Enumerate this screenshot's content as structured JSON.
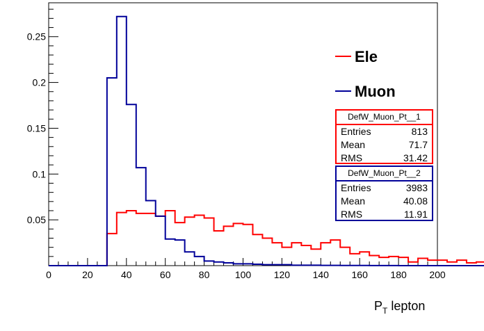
{
  "chart_data": {
    "type": "histogram",
    "title": "",
    "xlabel": "P_T lepton",
    "xlabel_main": "P",
    "xlabel_sub": "T",
    "xlabel_rest": " lepton",
    "ylabel": "",
    "xlim": [
      0,
      200
    ],
    "ylim": [
      0,
      0.287
    ],
    "bin_width": 5,
    "bin_start": 0,
    "x_ticks": [
      0,
      20,
      40,
      60,
      80,
      100,
      120,
      140,
      160,
      180,
      200
    ],
    "y_ticks": [
      0.05,
      0.1,
      0.15,
      0.2,
      0.25
    ],
    "y_tick_labels": [
      "0.05",
      "0.1",
      "0.15",
      "0.2",
      "0.25"
    ],
    "legend_position": "right",
    "series": [
      {
        "name": "Ele",
        "color": "#ff0000",
        "values": [
          0,
          0,
          0,
          0,
          0,
          0,
          0.035,
          0.058,
          0.06,
          0.057,
          0.057,
          0.054,
          0.06,
          0.047,
          0.053,
          0.055,
          0.052,
          0.038,
          0.043,
          0.046,
          0.045,
          0.034,
          0.03,
          0.025,
          0.02,
          0.025,
          0.022,
          0.018,
          0.025,
          0.028,
          0.02,
          0.013,
          0.015,
          0.011,
          0.009,
          0.01,
          0.009,
          0.004,
          0.008,
          0.006,
          0.006,
          0.004,
          0.006,
          0.003,
          0.004,
          0.002,
          0.003,
          0.002,
          0.004,
          0.002,
          0.001,
          0.001,
          0.001,
          0.002,
          0.001,
          0.001,
          0.0,
          0.0,
          0.001,
          0.0
        ]
      },
      {
        "name": "Muon",
        "color": "#000099",
        "values": [
          0,
          0,
          0,
          0,
          0,
          0,
          0.205,
          0.272,
          0.176,
          0.107,
          0.071,
          0.054,
          0.029,
          0.028,
          0.015,
          0.01,
          0.005,
          0.004,
          0.003,
          0.002,
          0.002,
          0.0015,
          0.001,
          0.001,
          0.001,
          0.0005,
          0.0005,
          0.0005,
          0.0003,
          0.0003,
          0.0002,
          0.0002,
          0.0002,
          0.0001,
          0.0001,
          0.0001,
          0.0,
          0.0,
          0.0,
          0.0,
          0.0,
          0.0,
          0.0,
          0.0,
          0.0,
          0.0,
          0.0,
          0.0,
          0.0,
          0.0,
          0.0,
          0.0,
          0.0,
          0.0,
          0.0,
          0.0,
          0.0,
          0.0,
          0.0,
          0.0
        ]
      }
    ]
  },
  "stats": [
    {
      "title": "DefW_Muon_Pt__1",
      "color": "#ff0000",
      "rows": [
        {
          "label": "Entries",
          "value": "813"
        },
        {
          "label": "Mean",
          "value": "71.7"
        },
        {
          "label": "RMS",
          "value": "31.42"
        }
      ]
    },
    {
      "title": "DefW_Muon_Pt__2",
      "color": "#000099",
      "rows": [
        {
          "label": "Entries",
          "value": "3983"
        },
        {
          "label": "Mean",
          "value": "40.08"
        },
        {
          "label": "RMS",
          "value": "11.91"
        }
      ]
    }
  ]
}
